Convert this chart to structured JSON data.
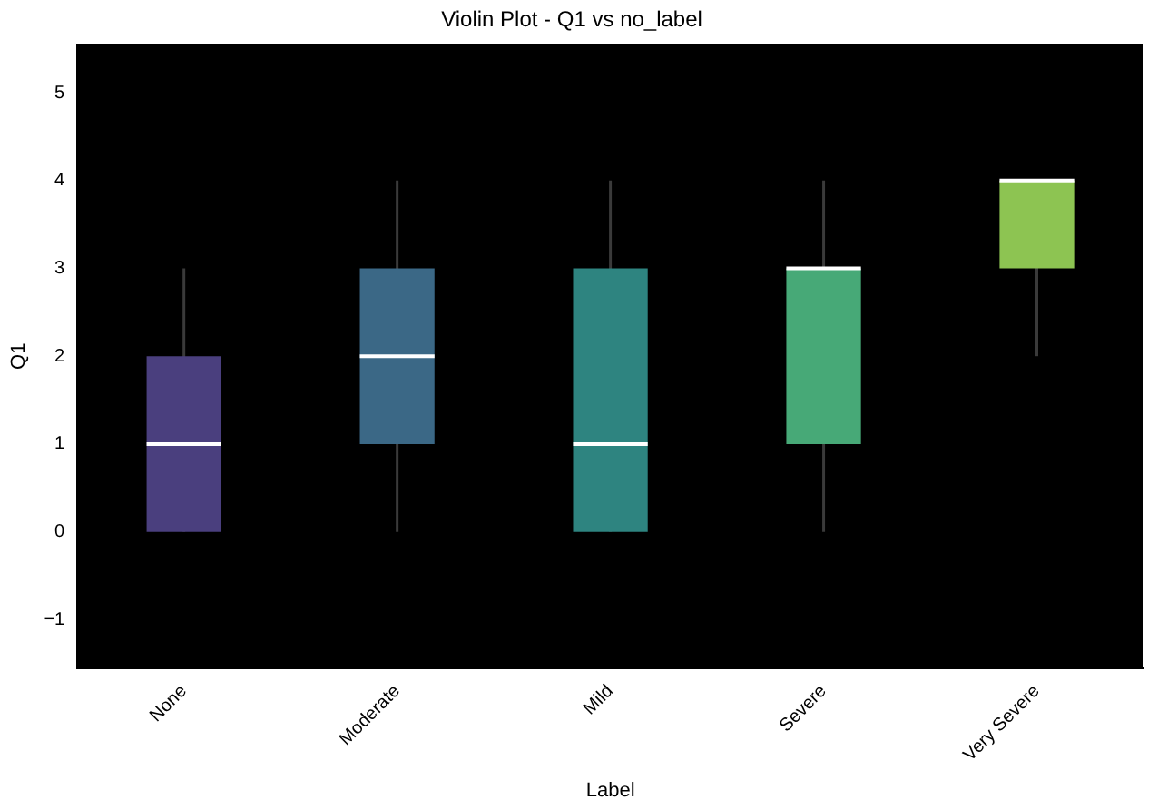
{
  "chart_data": {
    "type": "box",
    "title": "Violin Plot - Q1 vs no_label",
    "xlabel": "Label",
    "ylabel": "Q1",
    "categories": [
      "None",
      "Moderate",
      "Mild",
      "Severe",
      "Very Severe"
    ],
    "colors": [
      "#4a3f7e",
      "#3b6886",
      "#2e8480",
      "#47a977",
      "#8dc452"
    ],
    "boxes": [
      {
        "low": 0,
        "q1": 0,
        "median": 1,
        "q3": 2,
        "high": 3
      },
      {
        "low": 0,
        "q1": 1,
        "median": 2,
        "q3": 3,
        "high": 4
      },
      {
        "low": 0,
        "q1": 0,
        "median": 1,
        "q3": 3,
        "high": 4
      },
      {
        "low": 0,
        "q1": 1,
        "median": 3,
        "q3": 3,
        "high": 4
      },
      {
        "low": 2,
        "q1": 3,
        "median": 4,
        "q3": 4,
        "high": 4
      }
    ],
    "ylim": [
      -1.55,
      5.55
    ],
    "yticks": [
      -1,
      0,
      1,
      2,
      3,
      4,
      5
    ],
    "grid": false,
    "legend": false
  }
}
